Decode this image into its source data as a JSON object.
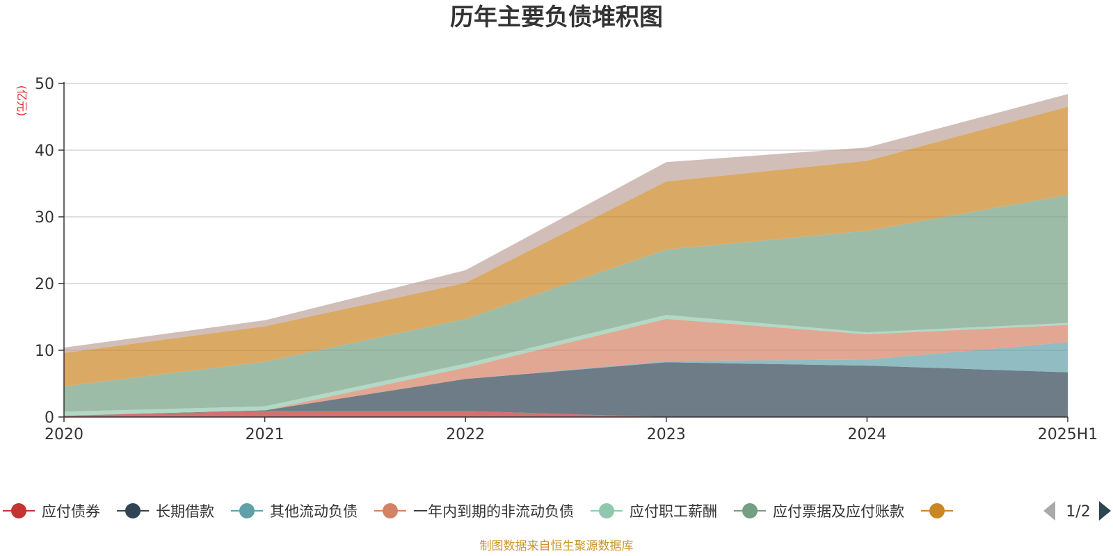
{
  "chart_data": {
    "type": "area",
    "stacked": true,
    "title": "历年主要负债堆积图",
    "unit_label": "(亿元)",
    "categories": [
      "2020",
      "2021",
      "2022",
      "2023",
      "2024",
      "2025H1"
    ],
    "ylim": [
      0,
      50
    ],
    "yticks": [
      "0",
      "10",
      "20",
      "30",
      "40",
      "50"
    ],
    "grid": true,
    "legend_position": "bottom",
    "series": [
      {
        "name": "应付债券",
        "color": "#c23531",
        "values": [
          0.2,
          0.9,
          0.9,
          0.0,
          0.0,
          0.0
        ]
      },
      {
        "name": "长期借款",
        "color": "#2f4554",
        "values": [
          0.0,
          0.1,
          4.8,
          8.2,
          7.7,
          6.7
        ]
      },
      {
        "name": "其他流动负债",
        "color": "#61a0a8",
        "values": [
          0.0,
          0.0,
          0.0,
          0.2,
          0.9,
          4.5
        ]
      },
      {
        "name": "一年内到期的非流动负债",
        "color": "#d48265",
        "values": [
          0.0,
          0.0,
          1.7,
          6.3,
          3.8,
          2.6
        ]
      },
      {
        "name": "应付职工薪酬",
        "color": "#91c7ae",
        "values": [
          0.6,
          0.6,
          0.6,
          0.6,
          0.3,
          0.3
        ]
      },
      {
        "name": "应付票据及应付账款",
        "color": "#749f83",
        "values": [
          3.8,
          6.7,
          6.7,
          9.8,
          15.2,
          19.2
        ]
      },
      {
        "name": "",
        "color": "#ca8622",
        "values": [
          5.0,
          5.3,
          5.4,
          10.2,
          10.5,
          13.2
        ]
      },
      {
        "name": "",
        "color": "#bda29a",
        "values": [
          0.8,
          0.9,
          1.9,
          2.9,
          2.0,
          1.9
        ]
      }
    ]
  },
  "legend": {
    "visible_count": 7,
    "page_indicator": "1/2",
    "prev_icon": "triangle-left-icon",
    "next_icon": "triangle-right-icon"
  },
  "source_note": "制图数据来自恒生聚源数据库"
}
